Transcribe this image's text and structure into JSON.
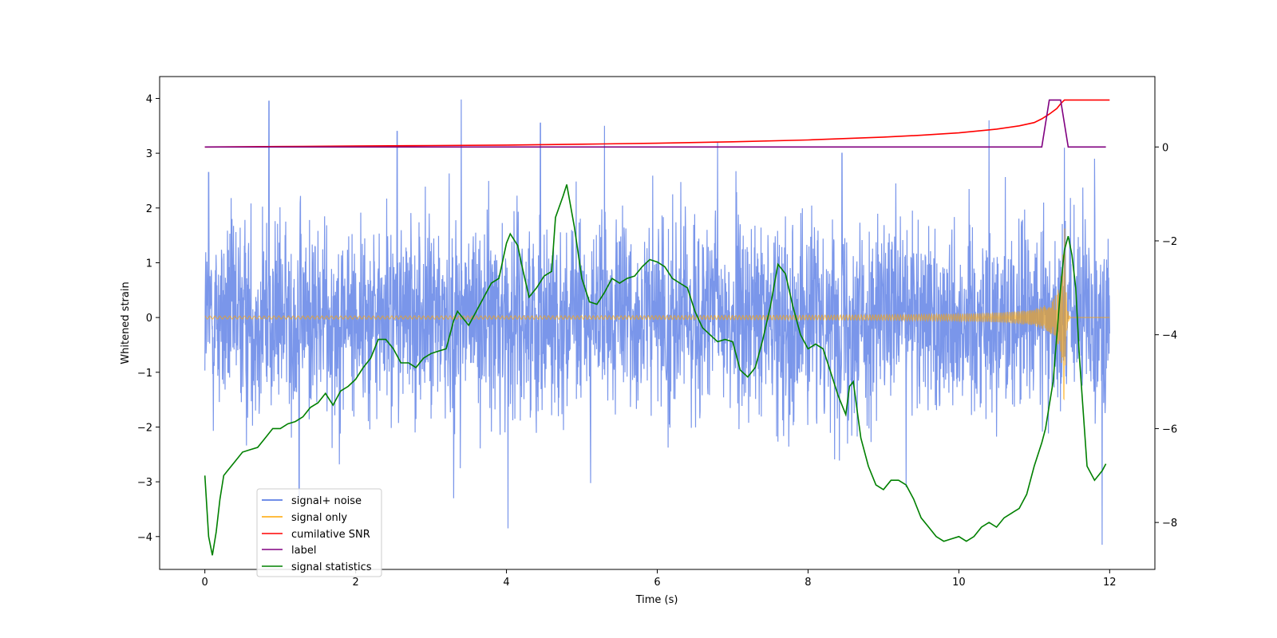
{
  "chart_data": {
    "type": "line",
    "xlabel": "Time (s)",
    "ylabel": "Whitened strain",
    "xlim": [
      -0.6,
      12.6
    ],
    "ylim": [
      -4.6,
      4.4
    ],
    "ylim_right": [
      -9.0,
      1.5
    ],
    "xticks": [
      0,
      2,
      4,
      6,
      8,
      10,
      12
    ],
    "yticks_left": [
      -4,
      -3,
      -2,
      -1,
      0,
      1,
      2,
      3,
      4
    ],
    "yticks_right": [
      -8,
      -6,
      -4,
      -2,
      0
    ],
    "legend_location": "lower-left",
    "series": [
      {
        "name": "signal+ noise",
        "axis": "left",
        "color": "#4169e1",
        "kind": "noise",
        "duration": 12,
        "approx_std": 1.0,
        "spikes": [
          [
            0.85,
            3.95
          ],
          [
            1.25,
            -3.3
          ],
          [
            2.55,
            3.4
          ],
          [
            3.4,
            3.98
          ],
          [
            3.3,
            -3.3
          ],
          [
            4.02,
            -3.85
          ],
          [
            4.45,
            3.55
          ],
          [
            5.3,
            3.5
          ],
          [
            6.8,
            3.2
          ],
          [
            8.45,
            3.0
          ],
          [
            9.3,
            -3.1
          ],
          [
            10.4,
            3.6
          ],
          [
            11.4,
            3.1
          ],
          [
            11.9,
            -4.15
          ],
          [
            0.05,
            2.65
          ],
          [
            11.8,
            2.9
          ]
        ]
      },
      {
        "name": "signal only",
        "axis": "left",
        "color": "#ffa500",
        "kind": "chirp",
        "merger_time": 11.4,
        "peak_amplitude": 2.2
      },
      {
        "name": "cumilative SNR",
        "axis": "right",
        "color": "#ff0000",
        "x": [
          0,
          1,
          2,
          3,
          4,
          5,
          6,
          7,
          8,
          8.5,
          9,
          9.5,
          10,
          10.5,
          10.8,
          11.0,
          11.1,
          11.2,
          11.3,
          11.35,
          11.4,
          11.45,
          12.0
        ],
        "y": [
          0.0,
          0.01,
          0.02,
          0.03,
          0.04,
          0.06,
          0.08,
          0.11,
          0.15,
          0.18,
          0.21,
          0.25,
          0.3,
          0.38,
          0.45,
          0.52,
          0.6,
          0.7,
          0.82,
          0.92,
          1.0,
          1.0,
          1.0
        ]
      },
      {
        "name": "label",
        "axis": "right",
        "color": "#800080",
        "x": [
          0,
          11.1,
          11.2,
          11.35,
          11.45,
          11.95
        ],
        "y": [
          0,
          0,
          1,
          1,
          0,
          0
        ]
      },
      {
        "name": "signal statistics",
        "axis": "right",
        "color": "#008000",
        "x": [
          0.0,
          0.05,
          0.1,
          0.15,
          0.2,
          0.25,
          0.3,
          0.4,
          0.5,
          0.6,
          0.7,
          0.8,
          0.9,
          1.0,
          1.1,
          1.2,
          1.3,
          1.4,
          1.5,
          1.6,
          1.7,
          1.8,
          1.9,
          2.0,
          2.1,
          2.2,
          2.3,
          2.4,
          2.5,
          2.6,
          2.7,
          2.8,
          2.9,
          3.0,
          3.1,
          3.2,
          3.3,
          3.35,
          3.45,
          3.5,
          3.6,
          3.7,
          3.8,
          3.9,
          4.0,
          4.05,
          4.15,
          4.2,
          4.3,
          4.4,
          4.5,
          4.6,
          4.65,
          4.75,
          4.8,
          4.9,
          5.0,
          5.1,
          5.2,
          5.3,
          5.4,
          5.5,
          5.6,
          5.7,
          5.8,
          5.9,
          6.0,
          6.1,
          6.2,
          6.3,
          6.4,
          6.5,
          6.6,
          6.7,
          6.8,
          6.9,
          7.0,
          7.1,
          7.2,
          7.3,
          7.4,
          7.5,
          7.6,
          7.7,
          7.8,
          7.9,
          8.0,
          8.1,
          8.2,
          8.3,
          8.4,
          8.5,
          8.55,
          8.6,
          8.7,
          8.8,
          8.9,
          9.0,
          9.1,
          9.2,
          9.3,
          9.4,
          9.5,
          9.6,
          9.7,
          9.8,
          9.9,
          10.0,
          10.1,
          10.2,
          10.3,
          10.4,
          10.5,
          10.6,
          10.7,
          10.8,
          10.9,
          11.0,
          11.1,
          11.15,
          11.2,
          11.25,
          11.3,
          11.35,
          11.4,
          11.45,
          11.5,
          11.55,
          11.6,
          11.7,
          11.8,
          11.9,
          11.95
        ],
        "y": [
          -7.0,
          -8.3,
          -8.7,
          -8.2,
          -7.5,
          -7.0,
          -6.9,
          -6.7,
          -6.5,
          -6.45,
          -6.4,
          -6.2,
          -6.0,
          -6.0,
          -5.9,
          -5.85,
          -5.75,
          -5.55,
          -5.45,
          -5.25,
          -5.5,
          -5.2,
          -5.1,
          -4.95,
          -4.7,
          -4.5,
          -4.1,
          -4.1,
          -4.3,
          -4.6,
          -4.6,
          -4.7,
          -4.5,
          -4.4,
          -4.35,
          -4.3,
          -3.7,
          -3.5,
          -3.7,
          -3.8,
          -3.5,
          -3.2,
          -2.9,
          -2.8,
          -2.05,
          -1.85,
          -2.1,
          -2.5,
          -3.2,
          -3.0,
          -2.75,
          -2.65,
          -1.5,
          -1.05,
          -0.8,
          -1.7,
          -2.8,
          -3.3,
          -3.35,
          -3.1,
          -2.8,
          -2.9,
          -2.8,
          -2.75,
          -2.55,
          -2.4,
          -2.45,
          -2.55,
          -2.8,
          -2.9,
          -3.0,
          -3.5,
          -3.85,
          -4.0,
          -4.15,
          -4.1,
          -4.15,
          -4.75,
          -4.9,
          -4.7,
          -4.1,
          -3.4,
          -2.5,
          -2.7,
          -3.4,
          -4.0,
          -4.3,
          -4.2,
          -4.3,
          -4.8,
          -5.3,
          -5.7,
          -5.1,
          -5.0,
          -6.2,
          -6.8,
          -7.2,
          -7.3,
          -7.1,
          -7.1,
          -7.2,
          -7.5,
          -7.9,
          -8.1,
          -8.3,
          -8.4,
          -8.35,
          -8.3,
          -8.4,
          -8.3,
          -8.1,
          -8.0,
          -8.1,
          -7.9,
          -7.8,
          -7.7,
          -7.4,
          -6.8,
          -6.3,
          -6.0,
          -5.5,
          -5.0,
          -4.0,
          -3.0,
          -2.2,
          -1.9,
          -2.3,
          -3.0,
          -4.5,
          -6.8,
          -7.1,
          -6.9,
          -6.75
        ]
      }
    ]
  },
  "legend": {
    "items": [
      {
        "label": "signal+ noise",
        "color": "#4169e1"
      },
      {
        "label": "signal only",
        "color": "#ffa500"
      },
      {
        "label": "cumilative SNR",
        "color": "#ff0000"
      },
      {
        "label": "label",
        "color": "#800080"
      },
      {
        "label": "signal statistics",
        "color": "#008000"
      }
    ]
  }
}
